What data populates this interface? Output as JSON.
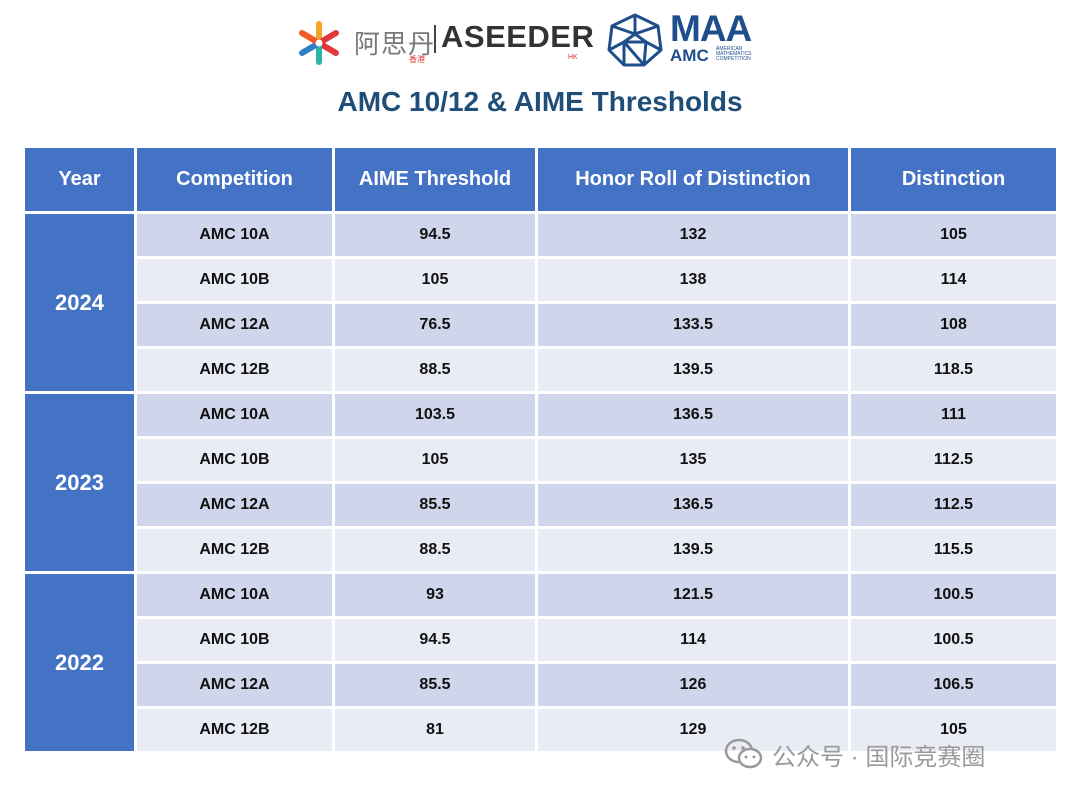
{
  "logos": {
    "aseeder_cn": "阿思丹",
    "aseeder_cn_sub": "香港",
    "aseeder_en": "ASEEDER",
    "aseeder_en_sub": "HK",
    "maa_big": "MAA",
    "maa_amc": "AMC",
    "maa_tiny": [
      "AMERICAN",
      "MATHEMATICS",
      "COMPETITION"
    ]
  },
  "title": "AMC 10/12 & AIME Thresholds",
  "table": {
    "headers": [
      "Year",
      "Competition",
      "AIME Threshold",
      "Honor Roll of Distinction",
      "Distinction"
    ],
    "groups": [
      {
        "year": "2024",
        "rows": [
          [
            "AMC 10A",
            "94.5",
            "132",
            "105"
          ],
          [
            "AMC 10B",
            "105",
            "138",
            "114"
          ],
          [
            "AMC 12A",
            "76.5",
            "133.5",
            "108"
          ],
          [
            "AMC 12B",
            "88.5",
            "139.5",
            "118.5"
          ]
        ]
      },
      {
        "year": "2023",
        "rows": [
          [
            "AMC 10A",
            "103.5",
            "136.5",
            "111"
          ],
          [
            "AMC 10B",
            "105",
            "135",
            "112.5"
          ],
          [
            "AMC 12A",
            "85.5",
            "136.5",
            "112.5"
          ],
          [
            "AMC 12B",
            "88.5",
            "139.5",
            "115.5"
          ]
        ]
      },
      {
        "year": "2022",
        "rows": [
          [
            "AMC 10A",
            "93",
            "121.5",
            "100.5"
          ],
          [
            "AMC 10B",
            "94.5",
            "114",
            "100.5"
          ],
          [
            "AMC 12A",
            "85.5",
            "126",
            "106.5"
          ],
          [
            "AMC 12B",
            "81",
            "129",
            "105"
          ]
        ]
      }
    ]
  },
  "watermark": {
    "icon": "wechat-icon",
    "text": "公众号 · 国际竞赛圈"
  },
  "colors": {
    "header_bg": "#4472c4",
    "row_dark": "#cfd5ea",
    "row_light": "#e9ebf5",
    "title": "#1f4e79"
  }
}
